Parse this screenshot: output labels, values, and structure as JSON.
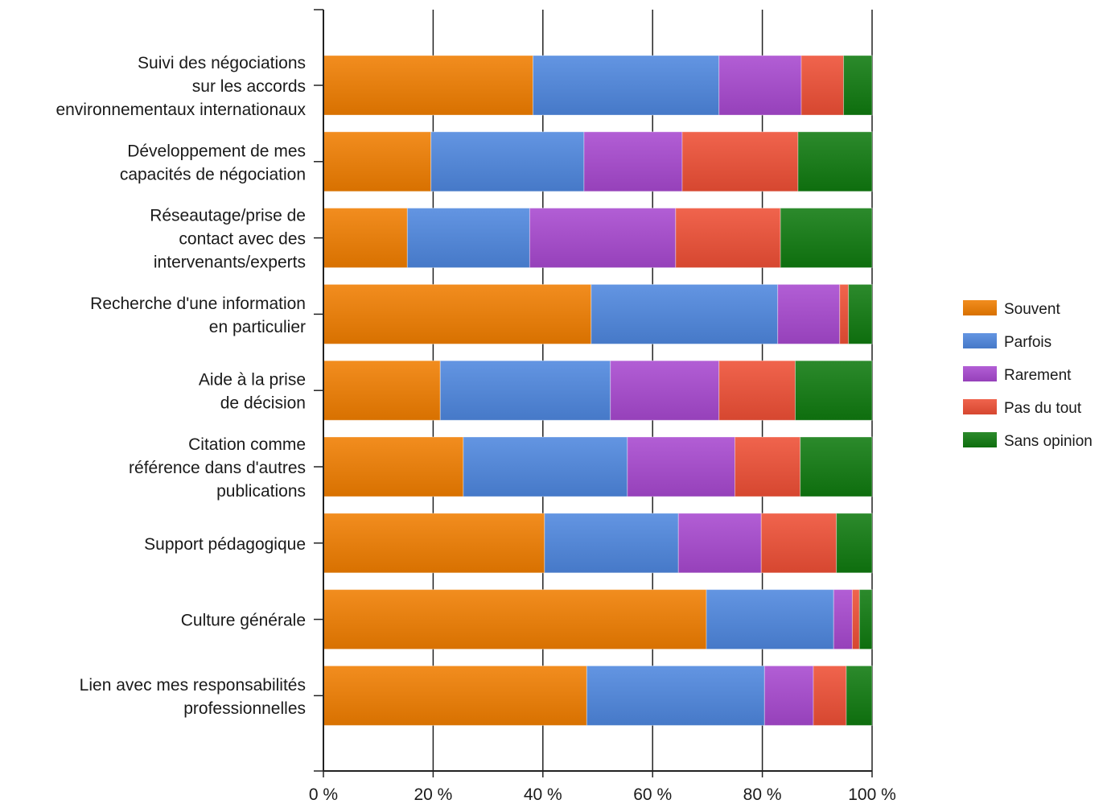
{
  "chart_data": {
    "type": "bar",
    "orientation": "horizontal",
    "stacked": "percent",
    "title": "",
    "xlabel": "",
    "ylabel": "",
    "xlim": [
      0,
      100
    ],
    "grid": true,
    "legend_position": "right",
    "x_ticks": [
      0,
      20,
      40,
      60,
      80,
      100
    ],
    "x_tick_labels": [
      "0 %",
      "20 %",
      "40 %",
      "60 %",
      "80 %",
      "100 %"
    ],
    "categories": [
      [
        "Suivi des négociations",
        "sur les accords",
        "environnementaux internationaux"
      ],
      [
        "Développement de mes",
        "capacités de négociation"
      ],
      [
        "Réseautage/prise de",
        "contact avec des",
        "intervenants/experts"
      ],
      [
        "Recherche d'une information",
        "en particulier"
      ],
      [
        "Aide à la prise",
        "de décision"
      ],
      [
        "Citation comme",
        "référence dans d'autres",
        "publications"
      ],
      [
        "Support pédagogique"
      ],
      [
        "Culture générale"
      ],
      [
        "Lien avec mes responsabilités",
        "professionnelles"
      ]
    ],
    "series": [
      {
        "name": "Souvent",
        "color": "#f07d00",
        "values": [
          38.2,
          19.6,
          15.3,
          48.8,
          21.3,
          25.5,
          40.3,
          69.8,
          48.0
        ]
      },
      {
        "name": "Parfois",
        "color": "#4e86de",
        "values": [
          33.9,
          27.9,
          22.3,
          34.0,
          31.0,
          29.9,
          24.4,
          23.2,
          32.4
        ]
      },
      {
        "name": "Rarement",
        "color": "#a748cf",
        "values": [
          15.0,
          17.9,
          26.6,
          11.3,
          19.8,
          19.6,
          15.1,
          3.4,
          8.9
        ]
      },
      {
        "name": "Pas du tout",
        "color": "#ee4f35",
        "values": [
          7.7,
          21.1,
          19.1,
          1.6,
          13.9,
          11.9,
          13.7,
          1.3,
          6.0
        ]
      },
      {
        "name": "Sans opinion",
        "color": "#0f7a0f",
        "values": [
          5.2,
          13.5,
          16.7,
          4.3,
          14.0,
          13.1,
          6.5,
          2.3,
          4.7
        ]
      }
    ]
  }
}
